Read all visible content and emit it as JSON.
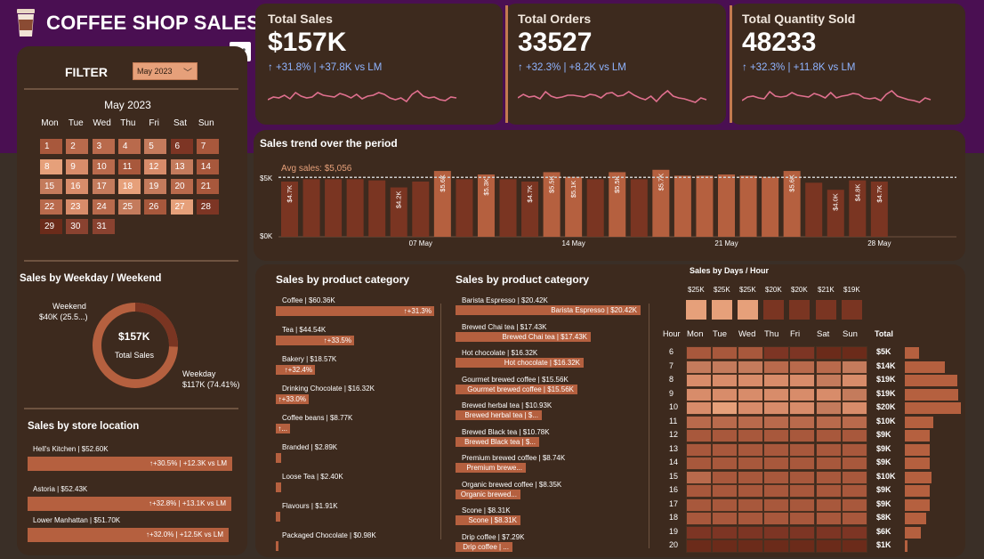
{
  "app": {
    "title": "COFFEE SHOP SALES"
  },
  "colors": {
    "accent": "#c37a4f",
    "bar": "#b5603f",
    "light": "#e6a07a",
    "dark": "#6b2b1a",
    "blue_text": "#8fb4ff"
  },
  "filter": {
    "label": "FILTER",
    "selected_month": "May 2023"
  },
  "calendar": {
    "title": "May 2023",
    "dow": [
      "Mon",
      "Tue",
      "Wed",
      "Thu",
      "Fri",
      "Sat",
      "Sun"
    ],
    "days": [
      "1",
      "2",
      "3",
      "4",
      "5",
      "6",
      "7",
      "8",
      "9",
      "10",
      "11",
      "12",
      "13",
      "14",
      "15",
      "16",
      "17",
      "18",
      "19",
      "20",
      "21",
      "22",
      "23",
      "24",
      "25",
      "26",
      "27",
      "28",
      "29",
      "30",
      "31"
    ]
  },
  "kpis": [
    {
      "title": "Total Sales",
      "value": "$157K",
      "delta": "↑ +31.8% | +37.8K vs LM"
    },
    {
      "title": "Total Orders",
      "value": "33527",
      "delta": "↑ +32.3% | +8.2K vs LM"
    },
    {
      "title": "Total Quantity Sold",
      "value": "48233",
      "delta": "↑ +32.3% | +11.8K vs LM"
    }
  ],
  "trend": {
    "title": "Sales trend over the period",
    "avg_label": "Avg sales: $5,056",
    "y_ticks": [
      "$5K",
      "$0K"
    ],
    "x_ticks": [
      "07 May",
      "14 May",
      "21 May",
      "28 May"
    ],
    "labels": [
      "$4.7K",
      "",
      "",
      "",
      "",
      "$4.2K",
      "",
      "$5.6K",
      "",
      "$5.3K",
      "",
      "$4.7K",
      "$5.5K",
      "$5.1K",
      "",
      "$5.5K",
      "",
      "$5.7K",
      "",
      "",
      "",
      "",
      "",
      "$5.6K",
      "",
      "$4.0K",
      "$4.8K",
      "$4.7K"
    ]
  },
  "weekday": {
    "title": "Sales by Weekday / Weekend",
    "center_value": "$157K",
    "center_label": "Total Sales",
    "weekend_label": "Weekend",
    "weekend_value": "$40K (25.5...)",
    "weekday_label": "Weekday",
    "weekday_value": "$117K (74.41%)"
  },
  "store": {
    "title": "Sales by store location",
    "items": [
      {
        "label": "Hell's Kitchen | $52.60K",
        "delta": "↑+30.5% | +12.3K vs LM"
      },
      {
        "label": "Astoria | $52.43K",
        "delta": "↑+32.8% | +13.1K vs LM"
      },
      {
        "label": "Lower Manhattan | $51.70K",
        "delta": "↑+32.0% | +12.5K vs LM"
      }
    ]
  },
  "category": {
    "title": "Sales by product category",
    "items": [
      {
        "label": "Coffee | $60.36K",
        "delta": "↑+31.3%"
      },
      {
        "label": "Tea | $44.54K",
        "delta": "↑+33.5%"
      },
      {
        "label": "Bakery | $18.57K",
        "delta": "↑+32.4%"
      },
      {
        "label": "Drinking Chocolate | $16.32K",
        "delta": "↑+33.0%"
      },
      {
        "label": "Coffee beans | $8.77K",
        "delta": "↑..."
      },
      {
        "label": "Branded | $2.89K",
        "delta": ""
      },
      {
        "label": "Loose Tea | $2.40K",
        "delta": ""
      },
      {
        "label": "Flavours | $1.91K",
        "delta": ""
      },
      {
        "label": "Packaged Chocolate | $0.98K",
        "delta": ""
      }
    ]
  },
  "product": {
    "title": "Sales by product category",
    "items": [
      {
        "label": "Barista Espresso | $20.42K",
        "bar": "Barista Espresso | $20.42K"
      },
      {
        "label": "Brewed Chai tea | $17.43K",
        "bar": "Brewed Chai tea | $17.43K"
      },
      {
        "label": "Hot chocolate | $16.32K",
        "bar": "Hot chocolate | $16.32K"
      },
      {
        "label": "Gourmet brewed coffee | $15.56K",
        "bar": "Gourmet brewed coffee | $15.56K"
      },
      {
        "label": "Brewed herbal tea | $10.93K",
        "bar": "Brewed herbal tea | $..."
      },
      {
        "label": "Brewed Black tea | $10.78K",
        "bar": "Brewed Black tea | $..."
      },
      {
        "label": "Premium brewed coffee | $8.74K",
        "bar": "Premium brewe..."
      },
      {
        "label": "Organic brewed coffee | $8.35K",
        "bar": "Organic brewed..."
      },
      {
        "label": "Scone | $8.31K",
        "bar": "Scone | $8.31K"
      },
      {
        "label": "Drip coffee | $7.29K",
        "bar": "Drip coffee | ..."
      }
    ]
  },
  "heatmap": {
    "title": "Sales by Days / Hour",
    "day_totals": [
      "$25K",
      "$25K",
      "$25K",
      "$20K",
      "$20K",
      "$21K",
      "$19K"
    ],
    "days": [
      "Mon",
      "Tue",
      "Wed",
      "Thu",
      "Fri",
      "Sat",
      "Sun"
    ],
    "hour_header": "Hour",
    "total_header": "Total",
    "hours": [
      "6",
      "7",
      "8",
      "9",
      "10",
      "11",
      "12",
      "13",
      "14",
      "15",
      "16",
      "17",
      "18",
      "19",
      "20"
    ],
    "hour_totals": [
      "$5K",
      "$14K",
      "$19K",
      "$19K",
      "$20K",
      "$10K",
      "$9K",
      "$9K",
      "$9K",
      "$10K",
      "$9K",
      "$9K",
      "$8K",
      "$6K",
      "$1K"
    ]
  }
}
